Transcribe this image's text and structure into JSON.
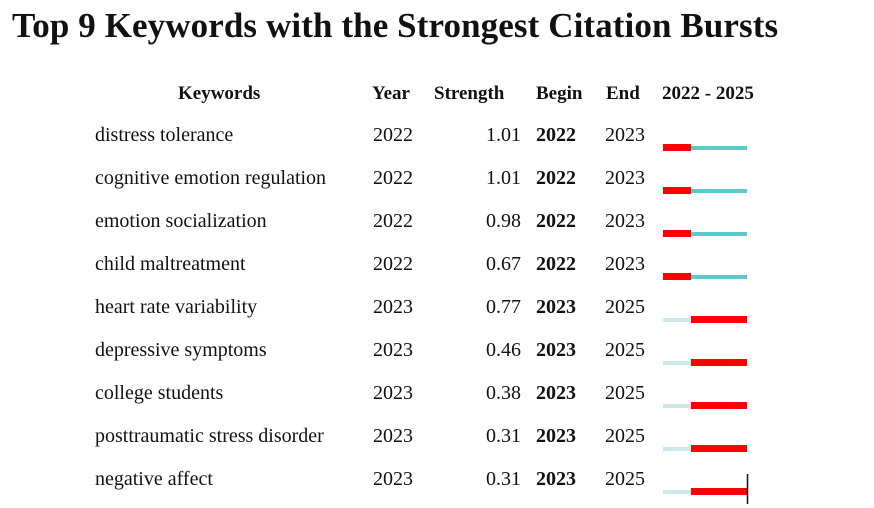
{
  "chart_data": {
    "type": "table",
    "title": "Top 9 Keywords with the Strongest Citation Bursts",
    "columns": [
      "Keywords",
      "Year",
      "Strength",
      "Begin",
      "End",
      "2022 - 2025"
    ],
    "timeline": {
      "start": 2022,
      "end": 2025
    },
    "colors": {
      "burst": "#ff0000",
      "active": "#5bc8cc",
      "inactive": "#cde9ea"
    },
    "rows": [
      {
        "keyword": "distress tolerance",
        "year": "2022",
        "strength": "1.01",
        "begin": "2022",
        "end": "2023"
      },
      {
        "keyword": "cognitive emotion regulation",
        "year": "2022",
        "strength": "1.01",
        "begin": "2022",
        "end": "2023"
      },
      {
        "keyword": "emotion socialization",
        "year": "2022",
        "strength": "0.98",
        "begin": "2022",
        "end": "2023"
      },
      {
        "keyword": "child maltreatment",
        "year": "2022",
        "strength": "0.67",
        "begin": "2022",
        "end": "2023"
      },
      {
        "keyword": "heart rate variability",
        "year": "2023",
        "strength": "0.77",
        "begin": "2023",
        "end": "2025"
      },
      {
        "keyword": "depressive symptoms",
        "year": "2023",
        "strength": "0.46",
        "begin": "2023",
        "end": "2025"
      },
      {
        "keyword": "college students",
        "year": "2023",
        "strength": "0.38",
        "begin": "2023",
        "end": "2025"
      },
      {
        "keyword": "posttraumatic stress disorder",
        "year": "2023",
        "strength": "0.31",
        "begin": "2023",
        "end": "2025"
      },
      {
        "keyword": "negative affect",
        "year": "2023",
        "strength": "0.31",
        "begin": "2023",
        "end": "2025"
      }
    ]
  }
}
